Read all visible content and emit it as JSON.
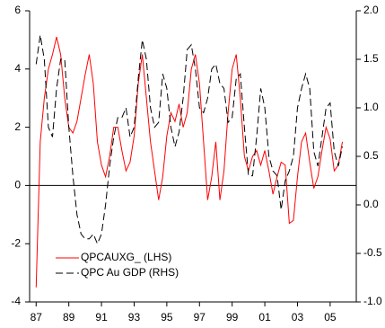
{
  "chart_data": {
    "type": "line",
    "x": [
      1987,
      1987.25,
      1987.5,
      1987.75,
      1988,
      1988.25,
      1988.5,
      1988.75,
      1989,
      1989.25,
      1989.5,
      1989.75,
      1990,
      1990.25,
      1990.5,
      1990.75,
      1991,
      1991.25,
      1991.5,
      1991.75,
      1992,
      1992.25,
      1992.5,
      1992.75,
      1993,
      1993.25,
      1993.5,
      1993.75,
      1994,
      1994.25,
      1994.5,
      1994.75,
      1995,
      1995.25,
      1995.5,
      1995.75,
      1996,
      1996.25,
      1996.5,
      1996.75,
      1997,
      1997.25,
      1997.5,
      1997.75,
      1998,
      1998.25,
      1998.5,
      1998.75,
      1999,
      1999.25,
      1999.5,
      1999.75,
      2000,
      2000.25,
      2000.5,
      2000.75,
      2001,
      2001.25,
      2001.5,
      2001.75,
      2002,
      2002.25,
      2002.5,
      2002.75,
      2003,
      2003.25,
      2003.5,
      2003.75,
      2004,
      2004.25,
      2004.5,
      2004.75,
      2005,
      2005.25,
      2005.5,
      2005.75
    ],
    "series": [
      {
        "name": "QPCAUXG_ (LHS)",
        "color": "#ff0000",
        "dash": false,
        "values": [
          -3.5,
          1.5,
          3,
          4,
          4.5,
          5.1,
          4.5,
          3,
          2,
          1.8,
          2.2,
          3,
          3.8,
          4.5,
          3.5,
          1.5,
          0.7,
          0.3,
          1,
          2,
          2,
          1.2,
          0.5,
          0.8,
          1.7,
          3.5,
          4.5,
          3,
          1.5,
          0.5,
          -0.5,
          0.3,
          1.7,
          2.5,
          2.2,
          2.8,
          2,
          2.5,
          4,
          4.5,
          3.5,
          1.5,
          -0.5,
          0.3,
          1.5,
          -0.5,
          0.5,
          2.5,
          4,
          4.5,
          3,
          1,
          0.5,
          1,
          1.2,
          0.7,
          1.2,
          0.5,
          -0.3,
          0.3,
          0.8,
          0.7,
          -1.3,
          -1.2,
          0.3,
          1.5,
          1.8,
          0.8,
          -0.1,
          0.3,
          1.2,
          2,
          1.6,
          0.5,
          0.7,
          1.5
        ]
      },
      {
        "name": "QPC Au GDP (RHS)",
        "color": "#000000",
        "dash": true,
        "axis": "y2",
        "values": [
          1.45,
          1.75,
          1.5,
          0.8,
          0.7,
          1.2,
          1.5,
          1.5,
          0.8,
          0.3,
          -0.1,
          -0.3,
          -0.35,
          -0.35,
          -0.3,
          -0.4,
          -0.3,
          0,
          0.4,
          0.7,
          0.9,
          0.9,
          1.0,
          0.7,
          0.8,
          1.3,
          1.7,
          1.5,
          1.0,
          0.8,
          0.85,
          1.35,
          1.2,
          0.8,
          0.6,
          0.75,
          1.1,
          1.6,
          1.65,
          1.4,
          1.0,
          0.95,
          1.1,
          1.4,
          1.45,
          1.25,
          1.2,
          0.85,
          0.9,
          1.3,
          1.35,
          0.8,
          0.3,
          0.3,
          0.7,
          1.2,
          1.0,
          0.5,
          0.35,
          0.3,
          -0.05,
          0.25,
          0.35,
          0.5,
          1.0,
          1.2,
          1.35,
          1.2,
          0.55,
          0.4,
          0.7,
          1.0,
          1.05,
          0.55,
          0.4,
          0.6
        ]
      }
    ],
    "xlim": [
      1986.6,
      2006.6
    ],
    "xticks": [
      {
        "value": 1987,
        "label": "87"
      },
      {
        "value": 1989,
        "label": "89"
      },
      {
        "value": 1991,
        "label": "91"
      },
      {
        "value": 1993,
        "label": "93"
      },
      {
        "value": 1995,
        "label": "95"
      },
      {
        "value": 1997,
        "label": "97"
      },
      {
        "value": 1999,
        "label": "99"
      },
      {
        "value": 2001,
        "label": "01"
      },
      {
        "value": 2003,
        "label": "03"
      },
      {
        "value": 2005,
        "label": "05"
      }
    ],
    "ylim": [
      -4,
      6
    ],
    "yticks": [
      -4,
      -2,
      0,
      2,
      4,
      6
    ],
    "y2lim": [
      -1,
      2
    ],
    "y2ticks": [
      {
        "value": -1,
        "label": "-1.0"
      },
      {
        "value": -0.5,
        "label": "-0.5"
      },
      {
        "value": 0,
        "label": "0.0"
      },
      {
        "value": 0.5,
        "label": "0.5"
      },
      {
        "value": 1,
        "label": "1.0"
      },
      {
        "value": 1.5,
        "label": "1.5"
      },
      {
        "value": 2,
        "label": "2.0"
      }
    ],
    "legend": "lower left"
  }
}
